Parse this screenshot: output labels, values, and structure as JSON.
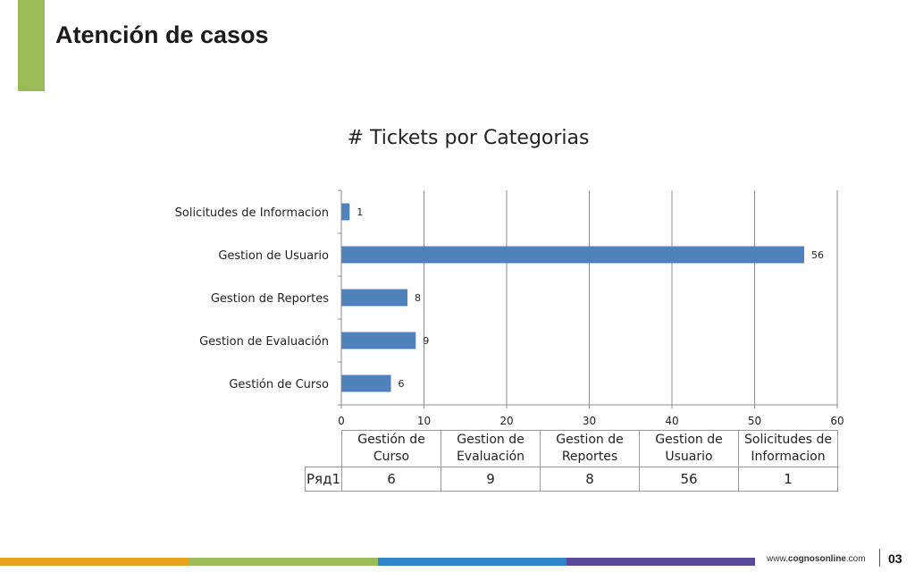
{
  "slide": {
    "title": "Atención de casos",
    "accent_color": "#9bbb59"
  },
  "chart_data": {
    "type": "bar",
    "orientation": "horizontal",
    "title": "# Tickets por Categorias",
    "categories": [
      "Gestión de Curso",
      "Gestion de Evaluación",
      "Gestion de Reportes",
      "Gestion de Usuario",
      "Solicitudes de Informacion"
    ],
    "series": [
      {
        "name": "Ряд1",
        "values": [
          6,
          9,
          8,
          56,
          1
        ],
        "color": "#4f81bd"
      }
    ],
    "xlim": [
      0,
      60
    ],
    "xticks": [
      0,
      10,
      20,
      30,
      40,
      50,
      60
    ],
    "grid": true,
    "data_labels": true,
    "data_table": true
  },
  "table": {
    "headers": [
      [
        "Gestión de Curso"
      ],
      [
        "Gestion de",
        "Evaluación"
      ],
      [
        "Gestion de",
        "Reportes"
      ],
      [
        "Gestion de Usuario"
      ],
      [
        "Solicitudes de",
        "Informacion"
      ]
    ],
    "row_label": "Ряд1",
    "values": [
      "6",
      "9",
      "8",
      "56",
      "1"
    ]
  },
  "footer": {
    "url_prefix": "www.",
    "url_brand": "cognosonline",
    "url_suffix": ".com",
    "page_number": "03",
    "strip_colors": [
      "#e3a11c",
      "#9bbb59",
      "#2e86c8",
      "#5b4a9b"
    ]
  }
}
